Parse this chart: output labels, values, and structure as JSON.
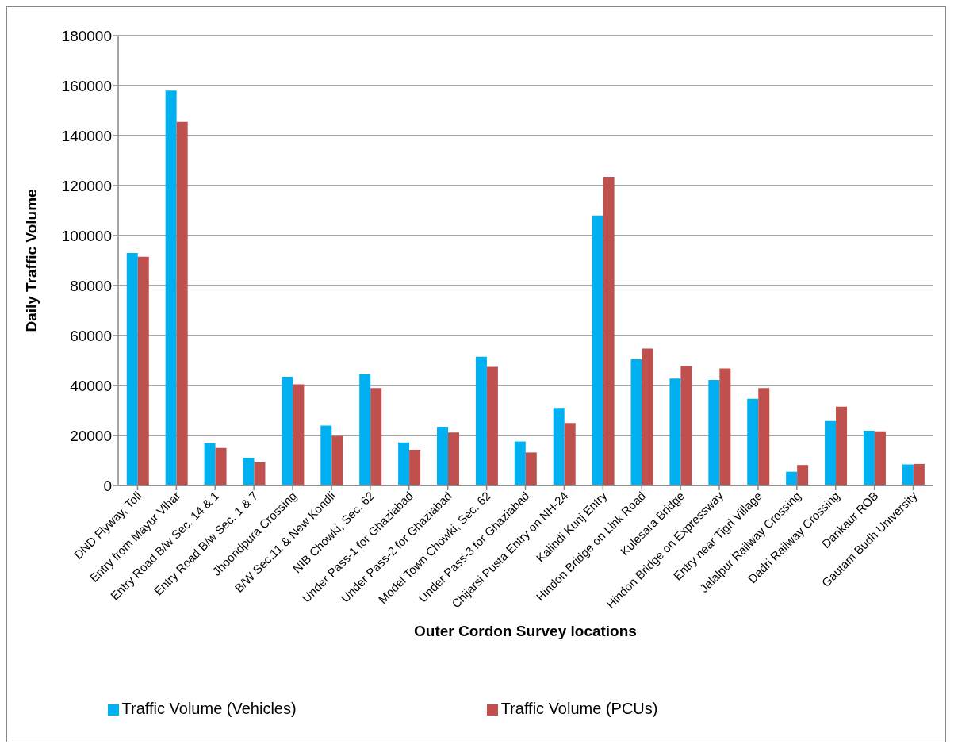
{
  "chart_data": {
    "type": "bar",
    "xlabel": "Outer Cordon Survey locations",
    "ylabel": "Daily Traffic Volume",
    "categories": [
      "DND Flyway, Toll",
      "Entry from Mayur Vihar",
      "Entry Road B/w Sec. 14 & 1",
      "Entry Road B/w Sec. 1 & 7",
      "Jhoondpura Crossing",
      "B/W Sec.11 & New Kondli",
      "NIB Chowki, Sec. 62",
      "Under Pass-1 for Ghaziabad",
      "Under Pass-2 for Ghaziabad",
      "Model Town Chowki, Sec. 62",
      "Under Pass-3 for Ghaziabad",
      "Chijarsi Pusta Entry on NH-24",
      "Kalindi Kunj Entry",
      "Hindon Bridge on Link Road",
      "Kulesara Bridge",
      "Hindon Bridge on Expressway",
      "Entry near Tigri Village",
      "Jalalpur  Railway Crossing",
      "Dadri Railway Crossing",
      "Dankaur ROB",
      "Gautam Budh University"
    ],
    "series": [
      {
        "name": "Traffic Volume (Vehicles)",
        "color": "#00b0f0",
        "values": [
          93000,
          158000,
          17000,
          11000,
          43500,
          24000,
          44500,
          17200,
          23500,
          51500,
          17600,
          31000,
          108000,
          50500,
          42800,
          42200,
          34700,
          5500,
          25800,
          21900,
          8400
        ]
      },
      {
        "name": "Traffic Volume (PCUs)",
        "color": "#c0504d",
        "values": [
          91500,
          145500,
          15000,
          9200,
          40500,
          19800,
          39000,
          14300,
          21200,
          47500,
          13200,
          25000,
          123500,
          54800,
          47800,
          46800,
          39000,
          8200,
          31500,
          21700,
          8600
        ]
      }
    ],
    "ylim": [
      0,
      180000
    ],
    "yticks": [
      0,
      20000,
      40000,
      60000,
      80000,
      100000,
      120000,
      140000,
      160000,
      180000
    ],
    "grid": "y",
    "legend": "bottom"
  }
}
